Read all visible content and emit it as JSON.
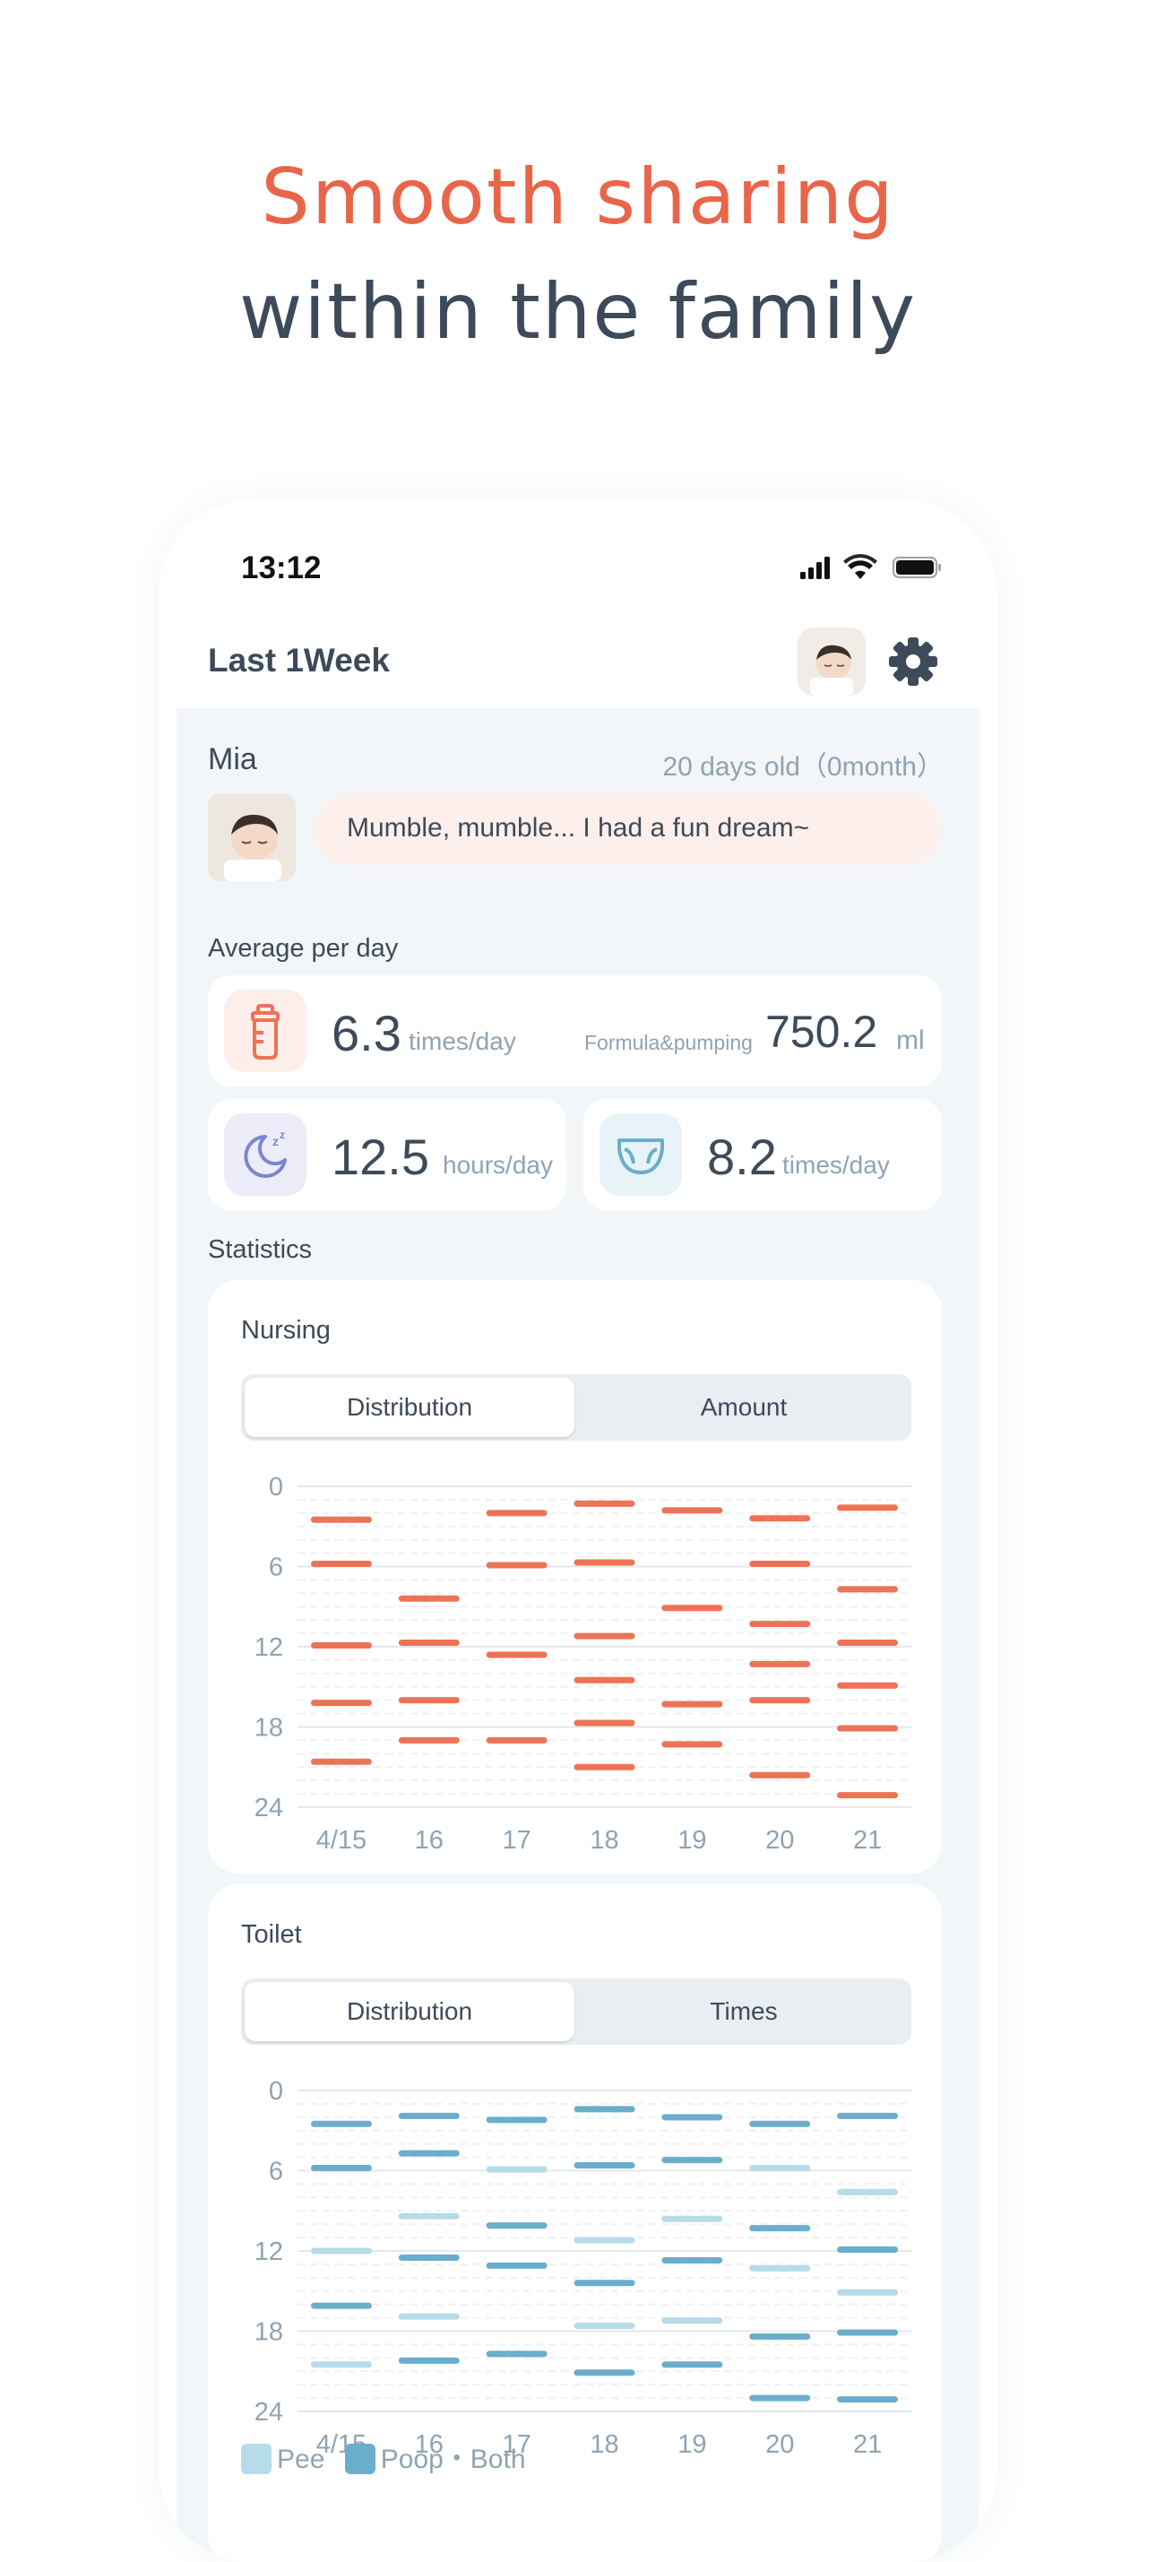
{
  "headline": {
    "line1": "Smooth sharing",
    "line2": "within the family",
    "line1_color": "#e9654a",
    "line2_color": "#3d4a5a"
  },
  "status_bar": {
    "time": "13:12"
  },
  "app_bar": {
    "title": "Last 1Week"
  },
  "baby": {
    "name": "Mia",
    "age": "20 days old（0month）",
    "message": "Mumble, mumble... I had a fun dream~"
  },
  "average": {
    "label": "Average per day",
    "feeding": {
      "value": "6.3",
      "unit": "times/day",
      "sub_label": "Formula&pumping",
      "sub_value": "750.2",
      "sub_unit": "ml",
      "icon": "bottle-icon"
    },
    "sleep": {
      "value": "12.5",
      "unit": "hours/day",
      "icon": "moon-sleep-icon"
    },
    "diaper": {
      "value": "8.2",
      "unit": "times/day",
      "icon": "diaper-icon"
    }
  },
  "statistics": {
    "label": "Statistics"
  },
  "nursing": {
    "title": "Nursing",
    "tabs": [
      "Distribution",
      "Amount"
    ],
    "active_tab": "Distribution"
  },
  "toilet": {
    "title": "Toilet",
    "tabs": [
      "Distribution",
      "Times"
    ],
    "active_tab": "Distribution",
    "legend": [
      {
        "label": "Pee",
        "color": "#b5dce8"
      },
      {
        "label": "Poop・Both",
        "color": "#6aaecb"
      }
    ]
  },
  "chart_data": [
    {
      "type": "scatter",
      "title": "Nursing",
      "x_categories": [
        "4/15",
        "16",
        "17",
        "18",
        "19",
        "20",
        "21"
      ],
      "y_ticks": [
        0,
        6,
        12,
        18,
        24
      ],
      "ylim": [
        0,
        24
      ],
      "y_inverted": true,
      "series": [
        {
          "color": "#ee7356",
          "points": [
            [
              0,
              2.5
            ],
            [
              0,
              5.8
            ],
            [
              0,
              11.9
            ],
            [
              0,
              16.2
            ],
            [
              0,
              20.6
            ],
            [
              1,
              8.4
            ],
            [
              1,
              11.7
            ],
            [
              1,
              16.0
            ],
            [
              1,
              19.0
            ],
            [
              2,
              2.0
            ],
            [
              2,
              5.9
            ],
            [
              2,
              12.6
            ],
            [
              2,
              19.0
            ],
            [
              3,
              1.3
            ],
            [
              3,
              5.7
            ],
            [
              3,
              11.2
            ],
            [
              3,
              14.5
            ],
            [
              3,
              17.7
            ],
            [
              3,
              21.0
            ],
            [
              4,
              1.8
            ],
            [
              4,
              9.1
            ],
            [
              4,
              16.3
            ],
            [
              4,
              19.3
            ],
            [
              5,
              2.4
            ],
            [
              5,
              5.8
            ],
            [
              5,
              10.3
            ],
            [
              5,
              13.3
            ],
            [
              5,
              16.0
            ],
            [
              5,
              21.6
            ],
            [
              6,
              1.6
            ],
            [
              6,
              7.7
            ],
            [
              6,
              11.7
            ],
            [
              6,
              14.9
            ],
            [
              6,
              18.1
            ],
            [
              6,
              23.1
            ]
          ]
        }
      ]
    },
    {
      "type": "scatter",
      "title": "Toilet",
      "x_categories": [
        "4/15",
        "16",
        "17",
        "18",
        "19",
        "20",
        "21"
      ],
      "y_ticks": [
        0,
        6,
        12,
        18,
        24
      ],
      "ylim": [
        0,
        24
      ],
      "y_inverted": true,
      "series": [
        {
          "name": "Pee",
          "color": "#b5dce8",
          "points": [
            [
              0,
              12.0
            ],
            [
              0,
              20.5
            ],
            [
              1,
              9.4
            ],
            [
              1,
              16.9
            ],
            [
              2,
              5.9
            ],
            [
              3,
              11.2
            ],
            [
              3,
              17.6
            ],
            [
              4,
              9.6
            ],
            [
              4,
              17.2
            ],
            [
              5,
              5.8
            ],
            [
              5,
              13.3
            ],
            [
              6,
              7.6
            ],
            [
              6,
              15.1
            ]
          ]
        },
        {
          "name": "Poop・Both",
          "color": "#6aaecb",
          "points": [
            [
              0,
              2.5
            ],
            [
              0,
              5.8
            ],
            [
              0,
              16.1
            ],
            [
              1,
              1.9
            ],
            [
              1,
              4.7
            ],
            [
              1,
              12.5
            ],
            [
              1,
              20.2
            ],
            [
              2,
              2.2
            ],
            [
              2,
              10.1
            ],
            [
              2,
              13.1
            ],
            [
              2,
              19.7
            ],
            [
              3,
              1.4
            ],
            [
              3,
              5.6
            ],
            [
              3,
              14.4
            ],
            [
              3,
              21.1
            ],
            [
              4,
              2.0
            ],
            [
              4,
              5.2
            ],
            [
              4,
              12.7
            ],
            [
              4,
              20.5
            ],
            [
              5,
              2.5
            ],
            [
              5,
              10.3
            ],
            [
              5,
              18.4
            ],
            [
              5,
              23.0
            ],
            [
              6,
              1.9
            ],
            [
              6,
              11.9
            ],
            [
              6,
              18.1
            ],
            [
              6,
              23.1
            ]
          ]
        }
      ]
    }
  ]
}
